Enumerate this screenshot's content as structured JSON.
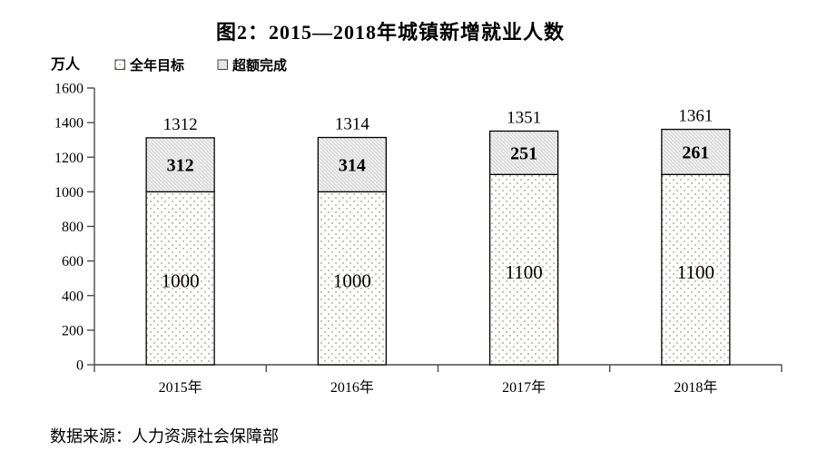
{
  "chart_data": {
    "type": "bar",
    "stacked": true,
    "title": "图2：2015—2018年城镇新增就业人数",
    "ylabel": "万人",
    "categories": [
      "2015年",
      "2016年",
      "2017年",
      "2018年"
    ],
    "series": [
      {
        "name": "全年目标",
        "pattern": "dots",
        "values": [
          1000,
          1000,
          1100,
          1100
        ]
      },
      {
        "name": "超额完成",
        "pattern": "hatch",
        "values": [
          312,
          314,
          251,
          261
        ]
      }
    ],
    "totals": [
      1312,
      1314,
      1351,
      1361
    ],
    "ylim": [
      0,
      1600
    ],
    "ytick_step": 200,
    "grid": false,
    "legend_position": "top-left",
    "source": "数据来源：人力资源社会保障部",
    "colors": {
      "text": "#000000",
      "axis": "#4a4a4a",
      "bar_border": "#000000",
      "hatch_background": "#dcdcdc",
      "hatch_line": "#f7f7f7",
      "dot_color": "#a09585"
    }
  }
}
